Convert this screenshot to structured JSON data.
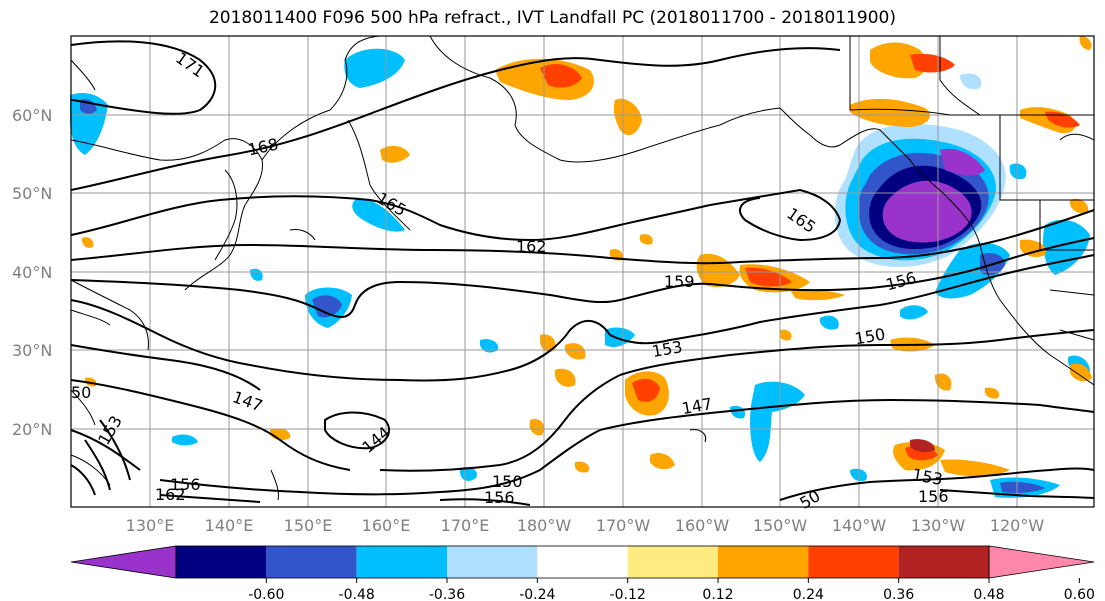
{
  "title": "2018011400 F096 500 hPa refract., IVT Landfall PC (2018011700 - 2018011900)",
  "lon_labels": [
    "130°E",
    "140°E",
    "150°E",
    "160°E",
    "170°E",
    "180°W",
    "170°W",
    "160°W",
    "150°W",
    "140°W",
    "130°W",
    "120°W"
  ],
  "lat_labels": [
    "60°N",
    "50°N",
    "40°N",
    "30°N",
    "20°N"
  ],
  "colorbar": {
    "ticks": [
      "-0.60",
      "-0.48",
      "-0.36",
      "-0.24",
      "-0.12",
      "0.12",
      "0.24",
      "0.36",
      "0.48",
      "0.60"
    ],
    "colors": [
      "#9933cc",
      "#000080",
      "#3355cc",
      "#00bfff",
      "#b0e0ff",
      "#ffffff",
      "#ffeb80",
      "#ffa500",
      "#ff4000",
      "#b22222",
      "#ff88aa"
    ]
  },
  "contour_labels": [
    {
      "id": "c171",
      "text": "171"
    },
    {
      "id": "c168",
      "text": "168"
    },
    {
      "id": "c165a",
      "text": "165"
    },
    {
      "id": "c165b",
      "text": "165"
    },
    {
      "id": "c162a",
      "text": "162"
    },
    {
      "id": "c159",
      "text": "159"
    },
    {
      "id": "c156a",
      "text": "156"
    },
    {
      "id": "c150a",
      "text": "150"
    },
    {
      "id": "c153a",
      "text": "153"
    },
    {
      "id": "c147a",
      "text": "147"
    },
    {
      "id": "c147b",
      "text": "147"
    },
    {
      "id": "c144",
      "text": "144"
    },
    {
      "id": "c150b",
      "text": "150"
    },
    {
      "id": "c156b",
      "text": "156"
    },
    {
      "id": "c162b",
      "text": "162"
    },
    {
      "id": "c156c",
      "text": "156"
    },
    {
      "id": "c153b",
      "text": "153"
    },
    {
      "id": "c156d",
      "text": "156"
    },
    {
      "id": "c150c",
      "text": "50"
    },
    {
      "id": "c153c",
      "text": "153"
    },
    {
      "id": "c50",
      "text": "50"
    }
  ]
}
